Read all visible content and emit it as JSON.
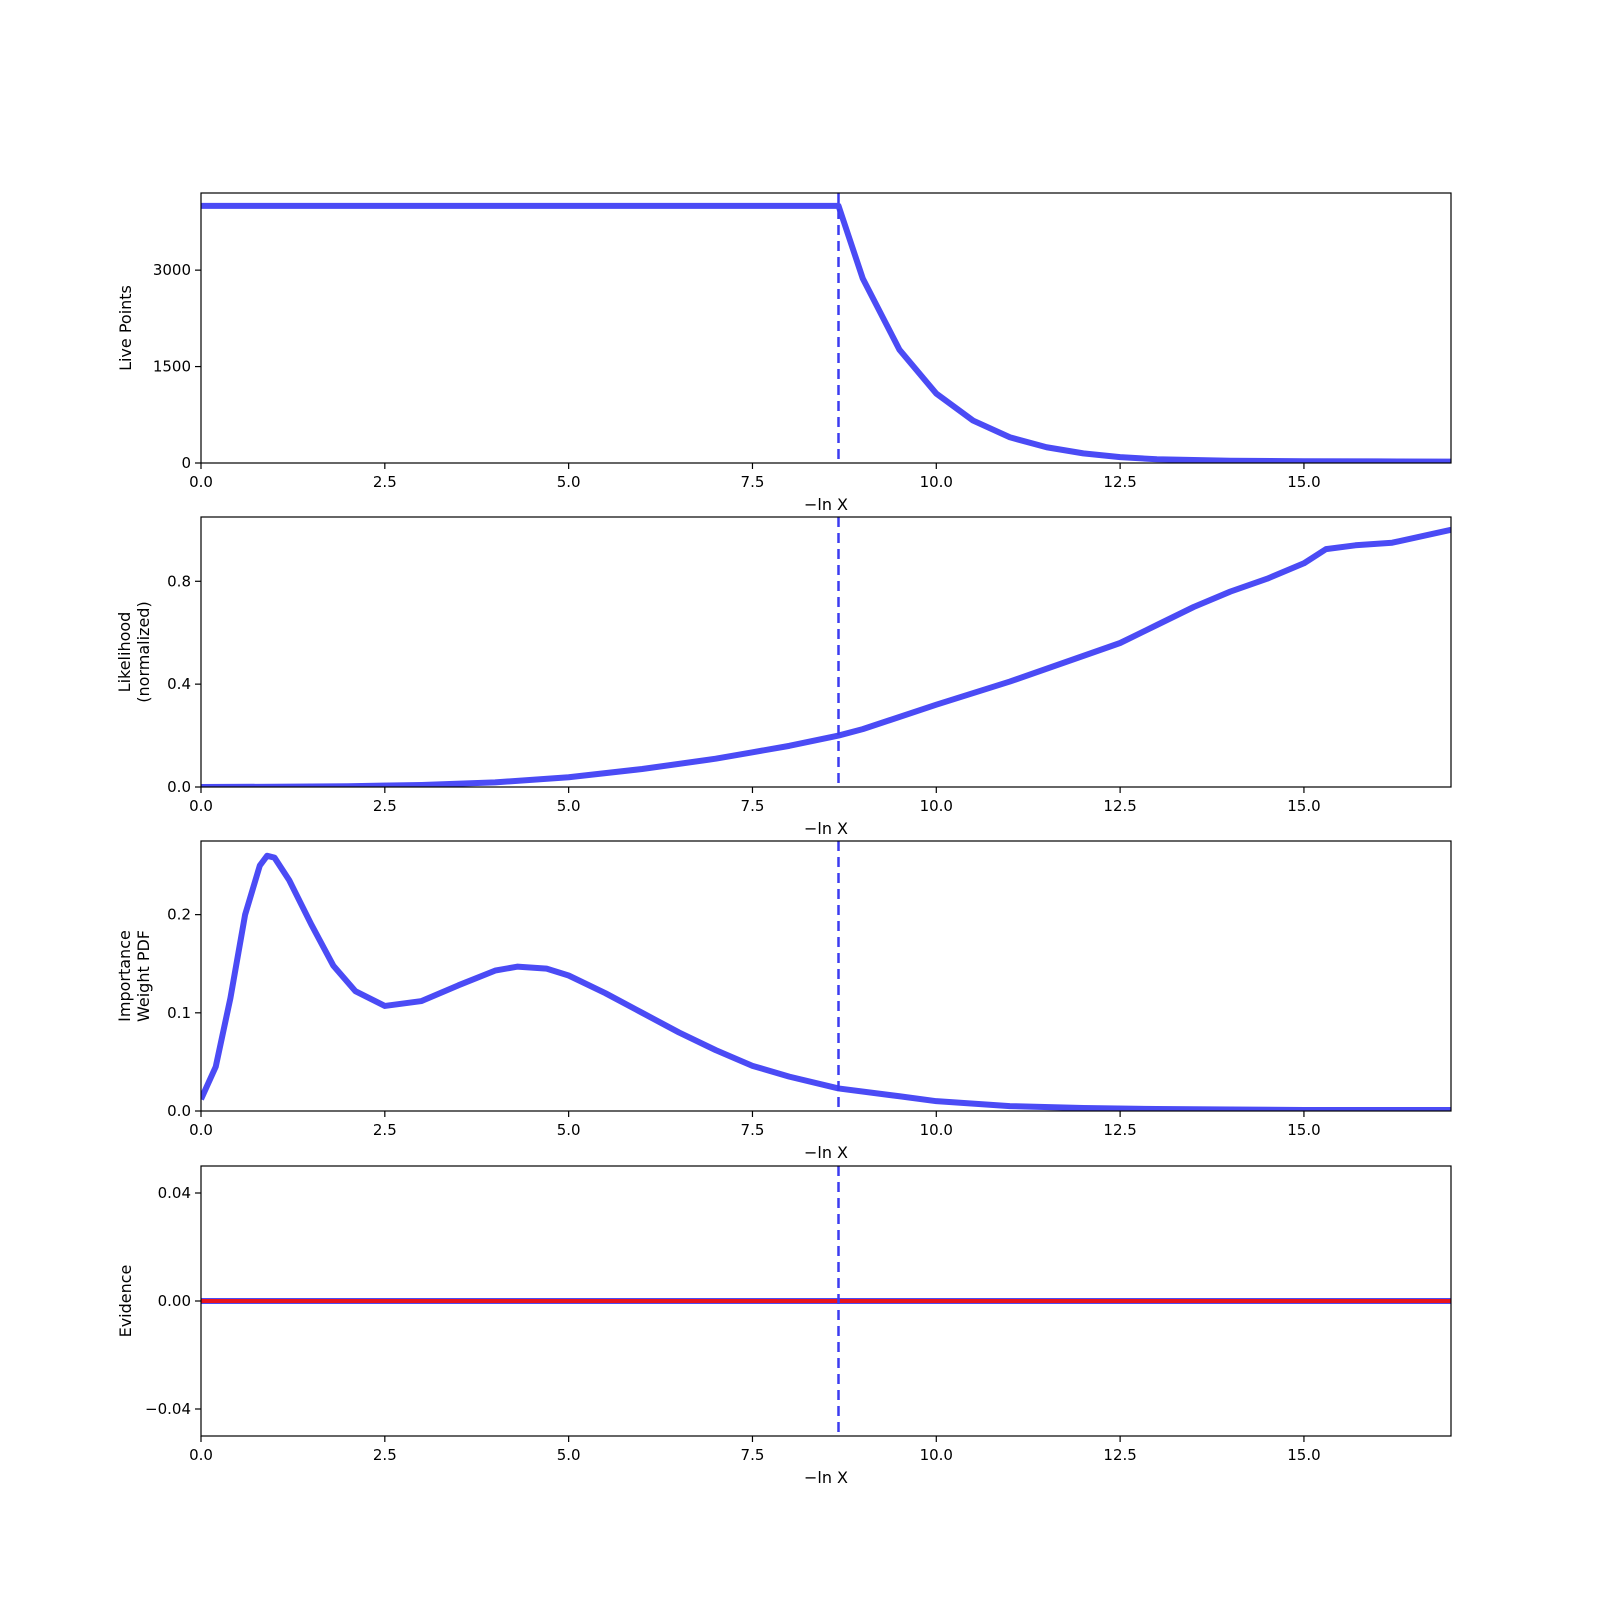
{
  "chart_data": [
    {
      "type": "line",
      "ylabel": [
        "Live Points"
      ],
      "xlabel": "−ln X",
      "xlim": [
        0,
        17
      ],
      "ylim": [
        0,
        4200
      ],
      "xticks": [
        0.0,
        2.5,
        5.0,
        7.5,
        10.0,
        12.5,
        15.0
      ],
      "xtick_labels": [
        "0.0",
        "2.5",
        "5.0",
        "7.5",
        "10.0",
        "12.5",
        "15.0"
      ],
      "yticks": [
        0,
        1500,
        3000
      ],
      "ytick_labels": [
        "0",
        "1500",
        "3000"
      ],
      "vline_x": 8.67,
      "series": [
        {
          "color": "#4b4bf5",
          "x": [
            0,
            8.67,
            8.67,
            9.0,
            9.5,
            10.0,
            10.5,
            11.0,
            11.5,
            12.0,
            12.5,
            13.0,
            14.0,
            15.0,
            16.0,
            17.0
          ],
          "y": [
            4000,
            4000,
            4000,
            2870,
            1760,
            1080,
            660,
            400,
            245,
            150,
            92,
            58,
            35,
            28,
            25,
            22
          ]
        }
      ]
    },
    {
      "type": "line",
      "ylabel": [
        "Likelihood",
        "(normalized)"
      ],
      "xlabel": "−ln X",
      "xlim": [
        0,
        17
      ],
      "ylim": [
        0,
        1.05
      ],
      "xticks": [
        0.0,
        2.5,
        5.0,
        7.5,
        10.0,
        12.5,
        15.0
      ],
      "xtick_labels": [
        "0.0",
        "2.5",
        "5.0",
        "7.5",
        "10.0",
        "12.5",
        "15.0"
      ],
      "yticks": [
        0.0,
        0.4,
        0.8
      ],
      "ytick_labels": [
        "0.0",
        "0.4",
        "0.8"
      ],
      "vline_x": 8.67,
      "series": [
        {
          "color": "#4b4bf5",
          "x": [
            0,
            1,
            2,
            3,
            4,
            5,
            6,
            7,
            7.5,
            8,
            8.67,
            9,
            10,
            11,
            12,
            12.5,
            13,
            13.5,
            14,
            14.5,
            15,
            15.3,
            15.7,
            16.2,
            17
          ],
          "y": [
            0.0,
            0.001,
            0.003,
            0.008,
            0.018,
            0.038,
            0.07,
            0.11,
            0.135,
            0.16,
            0.2,
            0.225,
            0.32,
            0.41,
            0.51,
            0.56,
            0.63,
            0.7,
            0.76,
            0.81,
            0.87,
            0.925,
            0.94,
            0.95,
            1.0
          ]
        }
      ]
    },
    {
      "type": "line",
      "ylabel": [
        "Importance",
        "Weight PDF"
      ],
      "xlabel": "−ln X",
      "xlim": [
        0,
        17
      ],
      "ylim": [
        0,
        0.275
      ],
      "xticks": [
        0.0,
        2.5,
        5.0,
        7.5,
        10.0,
        12.5,
        15.0
      ],
      "xtick_labels": [
        "0.0",
        "2.5",
        "5.0",
        "7.5",
        "10.0",
        "12.5",
        "15.0"
      ],
      "yticks": [
        0.0,
        0.1,
        0.2
      ],
      "ytick_labels": [
        "0.0",
        "0.1",
        "0.2"
      ],
      "vline_x": 8.67,
      "series": [
        {
          "color": "#4b4bf5",
          "x": [
            0,
            0.2,
            0.4,
            0.6,
            0.8,
            0.9,
            1.0,
            1.2,
            1.5,
            1.8,
            2.1,
            2.5,
            3.0,
            3.5,
            4.0,
            4.3,
            4.7,
            5.0,
            5.5,
            6.0,
            6.5,
            7.0,
            7.5,
            8.0,
            8.67,
            9.5,
            10.0,
            11.0,
            12.0,
            13.0,
            14.0,
            15.0,
            17.0
          ],
          "y": [
            0.012,
            0.045,
            0.115,
            0.2,
            0.25,
            0.26,
            0.258,
            0.235,
            0.19,
            0.148,
            0.122,
            0.107,
            0.112,
            0.128,
            0.143,
            0.147,
            0.145,
            0.138,
            0.12,
            0.1,
            0.08,
            0.062,
            0.046,
            0.035,
            0.023,
            0.015,
            0.01,
            0.005,
            0.003,
            0.002,
            0.0015,
            0.001,
            0.001
          ]
        }
      ]
    },
    {
      "type": "line",
      "ylabel": [
        "Evidence"
      ],
      "xlabel": "−ln X",
      "xlim": [
        0,
        17
      ],
      "ylim": [
        -0.05,
        0.05
      ],
      "xticks": [
        0.0,
        2.5,
        5.0,
        7.5,
        10.0,
        12.5,
        15.0
      ],
      "xtick_labels": [
        "0.0",
        "2.5",
        "5.0",
        "7.5",
        "10.0",
        "12.5",
        "15.0"
      ],
      "yticks": [
        -0.04,
        0.0,
        0.04
      ],
      "ytick_labels": [
        "−0.04",
        "0.00",
        "0.04"
      ],
      "vline_x": 8.67,
      "bounds": {
        "color": "#e8141e",
        "lower": 0.0,
        "upper": 0.0
      },
      "series": [
        {
          "color": "#4b4bf5",
          "x": [
            0,
            17
          ],
          "y": [
            0.0,
            0.0
          ]
        }
      ]
    }
  ]
}
